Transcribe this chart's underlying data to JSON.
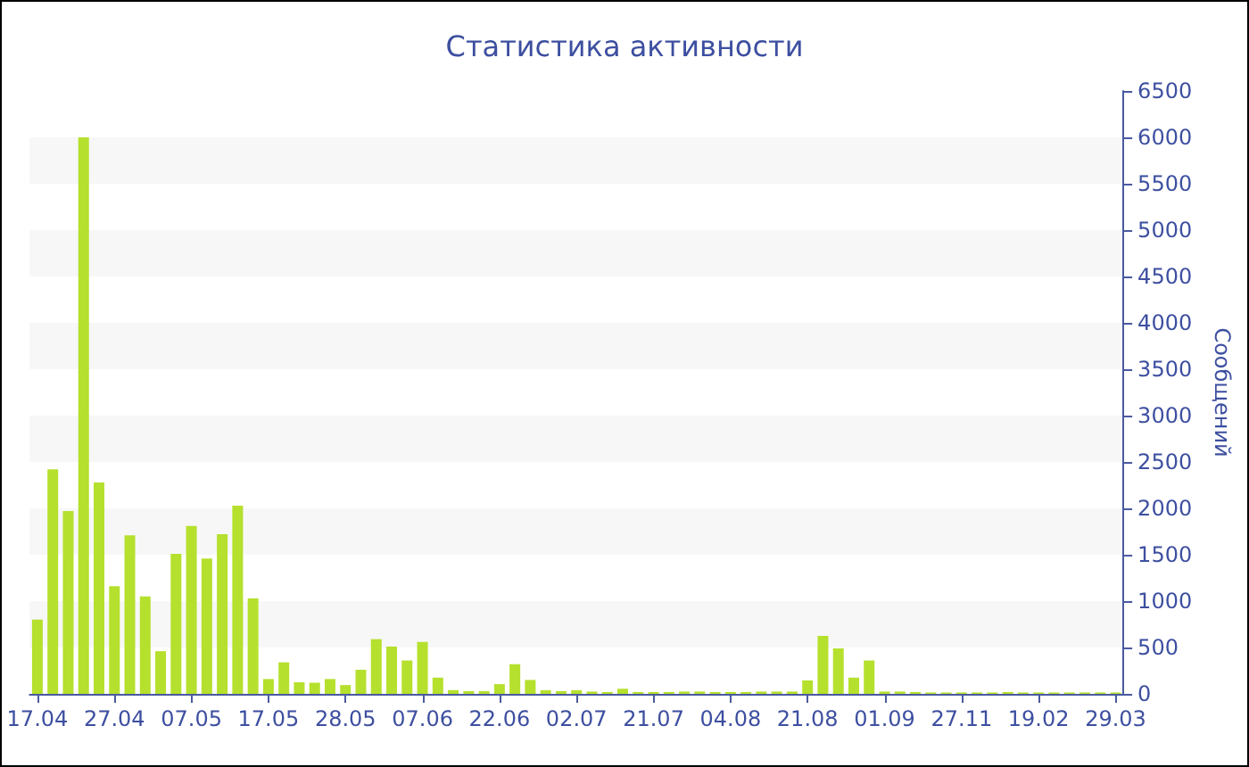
{
  "chart_data": {
    "type": "bar",
    "title": "Статистика активности",
    "ylabel": "Сообщений",
    "categories": [
      "17.04",
      null,
      null,
      null,
      null,
      "27.04",
      null,
      null,
      null,
      null,
      "07.05",
      null,
      null,
      null,
      null,
      "17.05",
      null,
      null,
      null,
      null,
      "28.05",
      null,
      null,
      null,
      null,
      "07.06",
      null,
      null,
      null,
      null,
      "22.06",
      null,
      null,
      null,
      null,
      "02.07",
      null,
      null,
      null,
      null,
      "21.07",
      null,
      null,
      null,
      null,
      "04.08",
      null,
      null,
      null,
      null,
      "21.08",
      null,
      null,
      null,
      null,
      "01.09",
      null,
      null,
      null,
      null,
      "27.11",
      null,
      null,
      null,
      null,
      "19.02",
      null,
      null,
      null,
      null,
      "29.03"
    ],
    "values": [
      800,
      2420,
      1970,
      6000,
      2280,
      1160,
      1710,
      1050,
      460,
      1510,
      1810,
      1460,
      1720,
      2030,
      1030,
      160,
      340,
      125,
      120,
      160,
      95,
      260,
      590,
      510,
      360,
      560,
      175,
      40,
      30,
      30,
      105,
      320,
      150,
      40,
      30,
      40,
      25,
      20,
      55,
      20,
      20,
      20,
      25,
      25,
      20,
      20,
      20,
      25,
      25,
      25,
      145,
      625,
      490,
      175,
      360,
      25,
      25,
      20,
      15,
      15,
      15,
      15,
      15,
      20,
      15,
      15,
      15,
      15,
      15,
      15,
      15
    ],
    "color": "#b5e02d",
    "ylim": [
      0,
      6500
    ],
    "yticks": [
      0,
      500,
      1000,
      1500,
      2000,
      2500,
      3000,
      3500,
      4000,
      4500,
      5000,
      5500,
      6000,
      6500
    ]
  }
}
